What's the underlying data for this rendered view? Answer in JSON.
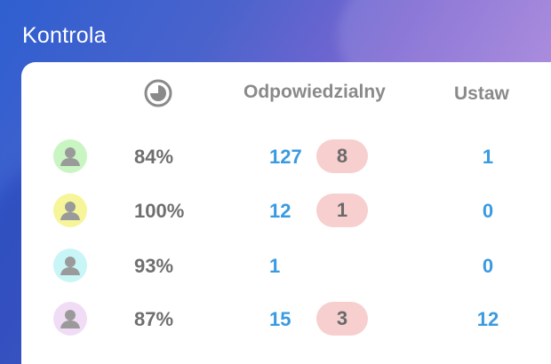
{
  "app": {
    "title": "Kontrola"
  },
  "table": {
    "columns": {
      "time_icon": "clock-icon",
      "responsible": "Odpowiedzialny",
      "set": "Ustaw"
    },
    "rows": [
      {
        "avatar_color": "#c9f5c2",
        "percent": "84%",
        "responsible": "127",
        "badge": "8",
        "set": "1"
      },
      {
        "avatar_color": "#f7f59a",
        "percent": "100%",
        "responsible": "12",
        "badge": "1",
        "set": "0"
      },
      {
        "avatar_color": "#c8f5f6",
        "percent": "93%",
        "responsible": "1",
        "badge": "",
        "set": "0"
      },
      {
        "avatar_color": "#f1dcf6",
        "percent": "87%",
        "responsible": "15",
        "badge": "3",
        "set": "12"
      }
    ]
  },
  "colors": {
    "accent": "#3a9ae0",
    "badge_bg": "#f7cfcf",
    "muted_text": "#8a8a8a"
  }
}
